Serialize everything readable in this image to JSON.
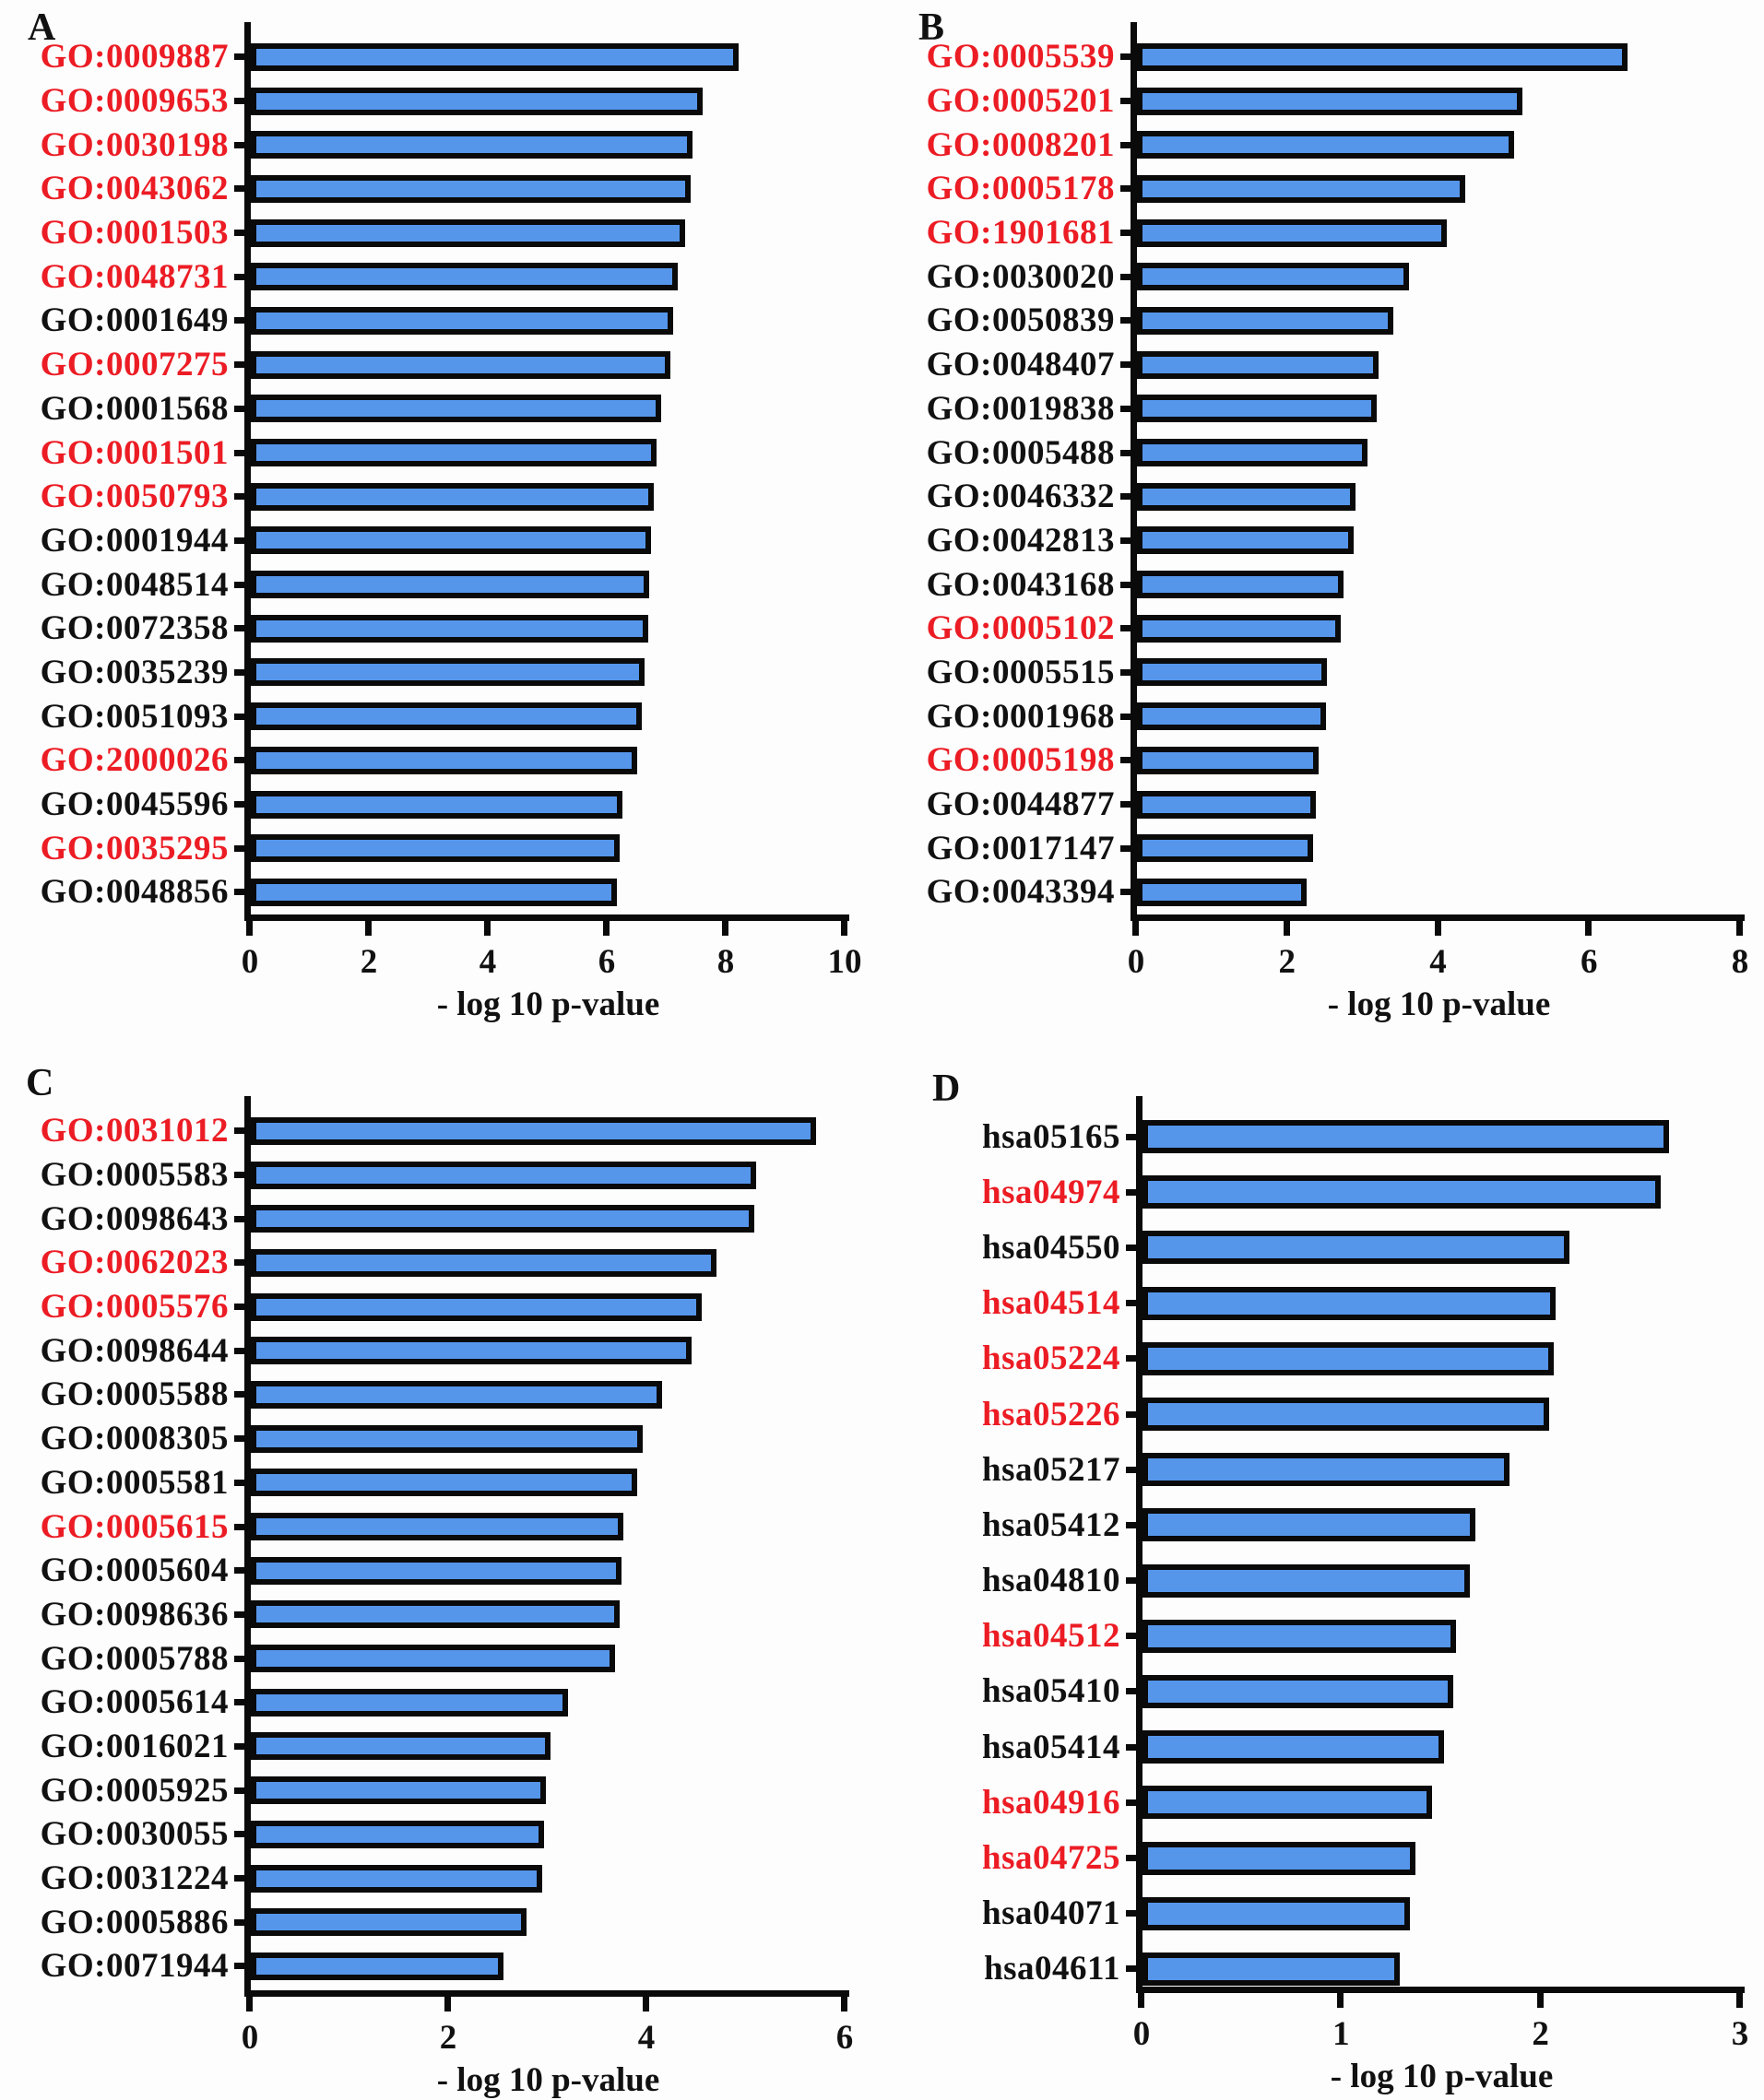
{
  "figure": {
    "description": "Four-panel horizontal bar chart figure of enrichment analysis",
    "xlabel": "- log 10 p-value"
  },
  "colors": {
    "bar_fill": "#5596EB",
    "bar_outline": "#0a0a0a",
    "highlight_red": "#EC1C24",
    "label_black": "#111111"
  },
  "chart_data": [
    {
      "type": "bar",
      "orientation": "horizontal",
      "panel": "A",
      "xlabel": "- log 10 p-value",
      "xlim": [
        0,
        10
      ],
      "xticks": [
        0,
        2,
        4,
        6,
        8,
        10
      ],
      "grid": false,
      "legend": false,
      "bars": [
        {
          "label": "GO:0009887",
          "value": 8.2,
          "red": true
        },
        {
          "label": "GO:0009653",
          "value": 7.6,
          "red": true
        },
        {
          "label": "GO:0030198",
          "value": 7.42,
          "red": true
        },
        {
          "label": "GO:0043062",
          "value": 7.4,
          "red": true
        },
        {
          "label": "GO:0001503",
          "value": 7.3,
          "red": true
        },
        {
          "label": "GO:0048731",
          "value": 7.18,
          "red": true
        },
        {
          "label": "GO:0001649",
          "value": 7.1,
          "red": false
        },
        {
          "label": "GO:0007275",
          "value": 7.05,
          "red": true
        },
        {
          "label": "GO:0001568",
          "value": 6.9,
          "red": false
        },
        {
          "label": "GO:0001501",
          "value": 6.82,
          "red": true
        },
        {
          "label": "GO:0050793",
          "value": 6.78,
          "red": true
        },
        {
          "label": "GO:0001944",
          "value": 6.73,
          "red": false
        },
        {
          "label": "GO:0048514",
          "value": 6.7,
          "red": false
        },
        {
          "label": "GO:0072358",
          "value": 6.68,
          "red": false
        },
        {
          "label": "GO:0035239",
          "value": 6.62,
          "red": false
        },
        {
          "label": "GO:0051093",
          "value": 6.58,
          "red": false
        },
        {
          "label": "GO:2000026",
          "value": 6.5,
          "red": true
        },
        {
          "label": "GO:0045596",
          "value": 6.25,
          "red": false
        },
        {
          "label": "GO:0035295",
          "value": 6.2,
          "red": true
        },
        {
          "label": "GO:0048856",
          "value": 6.15,
          "red": false
        }
      ]
    },
    {
      "type": "bar",
      "orientation": "horizontal",
      "panel": "B",
      "xlabel": "- log 10 p-value",
      "xlim": [
        0,
        8
      ],
      "xticks": [
        0,
        2,
        4,
        6,
        8
      ],
      "grid": false,
      "legend": false,
      "bars": [
        {
          "label": "GO:0005539",
          "value": 6.5,
          "red": true
        },
        {
          "label": "GO:0005201",
          "value": 5.1,
          "red": true
        },
        {
          "label": "GO:0008201",
          "value": 5.0,
          "red": true
        },
        {
          "label": "GO:0005178",
          "value": 4.35,
          "red": true
        },
        {
          "label": "GO:1901681",
          "value": 4.1,
          "red": true
        },
        {
          "label": "GO:0030020",
          "value": 3.6,
          "red": false
        },
        {
          "label": "GO:0050839",
          "value": 3.4,
          "red": false
        },
        {
          "label": "GO:0048407",
          "value": 3.2,
          "red": false
        },
        {
          "label": "GO:0019838",
          "value": 3.18,
          "red": false
        },
        {
          "label": "GO:0005488",
          "value": 3.05,
          "red": false
        },
        {
          "label": "GO:0046332",
          "value": 2.9,
          "red": false
        },
        {
          "label": "GO:0042813",
          "value": 2.87,
          "red": false
        },
        {
          "label": "GO:0043168",
          "value": 2.73,
          "red": false
        },
        {
          "label": "GO:0005102",
          "value": 2.7,
          "red": true
        },
        {
          "label": "GO:0005515",
          "value": 2.52,
          "red": false
        },
        {
          "label": "GO:0001968",
          "value": 2.5,
          "red": false
        },
        {
          "label": "GO:0005198",
          "value": 2.4,
          "red": true
        },
        {
          "label": "GO:0044877",
          "value": 2.37,
          "red": false
        },
        {
          "label": "GO:0017147",
          "value": 2.33,
          "red": false
        },
        {
          "label": "GO:0043394",
          "value": 2.25,
          "red": false
        }
      ]
    },
    {
      "type": "bar",
      "orientation": "horizontal",
      "panel": "C",
      "xlabel": "- log 10 p-value",
      "xlim": [
        0,
        6
      ],
      "xticks": [
        0,
        2,
        4,
        6
      ],
      "grid": false,
      "legend": false,
      "bars": [
        {
          "label": "GO:0031012",
          "value": 5.7,
          "red": true
        },
        {
          "label": "GO:0005583",
          "value": 5.1,
          "red": false
        },
        {
          "label": "GO:0098643",
          "value": 5.08,
          "red": false
        },
        {
          "label": "GO:0062023",
          "value": 4.7,
          "red": true
        },
        {
          "label": "GO:0005576",
          "value": 4.55,
          "red": true
        },
        {
          "label": "GO:0098644",
          "value": 4.45,
          "red": false
        },
        {
          "label": "GO:0005588",
          "value": 4.15,
          "red": false
        },
        {
          "label": "GO:0008305",
          "value": 3.95,
          "red": false
        },
        {
          "label": "GO:0005581",
          "value": 3.9,
          "red": false
        },
        {
          "label": "GO:0005615",
          "value": 3.76,
          "red": true
        },
        {
          "label": "GO:0005604",
          "value": 3.74,
          "red": false
        },
        {
          "label": "GO:0098636",
          "value": 3.72,
          "red": false
        },
        {
          "label": "GO:0005788",
          "value": 3.67,
          "red": false
        },
        {
          "label": "GO:0005614",
          "value": 3.2,
          "red": false
        },
        {
          "label": "GO:0016021",
          "value": 3.02,
          "red": false
        },
        {
          "label": "GO:0005925",
          "value": 2.98,
          "red": false
        },
        {
          "label": "GO:0030055",
          "value": 2.96,
          "red": false
        },
        {
          "label": "GO:0031224",
          "value": 2.94,
          "red": false
        },
        {
          "label": "GO:0005886",
          "value": 2.78,
          "red": false
        },
        {
          "label": "GO:0071944",
          "value": 2.55,
          "red": false
        }
      ]
    },
    {
      "type": "bar",
      "orientation": "horizontal",
      "panel": "D",
      "xlabel": "- log 10 p-value",
      "xlim": [
        0,
        3
      ],
      "xticks": [
        0,
        1,
        2,
        3
      ],
      "grid": false,
      "legend": false,
      "bars": [
        {
          "label": "hsa05165",
          "value": 2.64,
          "red": false
        },
        {
          "label": "hsa04974",
          "value": 2.6,
          "red": true
        },
        {
          "label": "hsa04550",
          "value": 2.14,
          "red": false
        },
        {
          "label": "hsa04514",
          "value": 2.07,
          "red": true
        },
        {
          "label": "hsa05224",
          "value": 2.06,
          "red": true
        },
        {
          "label": "hsa05226",
          "value": 2.04,
          "red": true
        },
        {
          "label": "hsa05217",
          "value": 1.84,
          "red": false
        },
        {
          "label": "hsa05412",
          "value": 1.67,
          "red": false
        },
        {
          "label": "hsa04810",
          "value": 1.64,
          "red": false
        },
        {
          "label": "hsa04512",
          "value": 1.57,
          "red": true
        },
        {
          "label": "hsa05410",
          "value": 1.56,
          "red": false
        },
        {
          "label": "hsa05414",
          "value": 1.51,
          "red": false
        },
        {
          "label": "hsa04916",
          "value": 1.45,
          "red": true
        },
        {
          "label": "hsa04725",
          "value": 1.37,
          "red": true
        },
        {
          "label": "hsa04071",
          "value": 1.34,
          "red": false
        },
        {
          "label": "hsa04611",
          "value": 1.29,
          "red": false
        }
      ]
    }
  ]
}
